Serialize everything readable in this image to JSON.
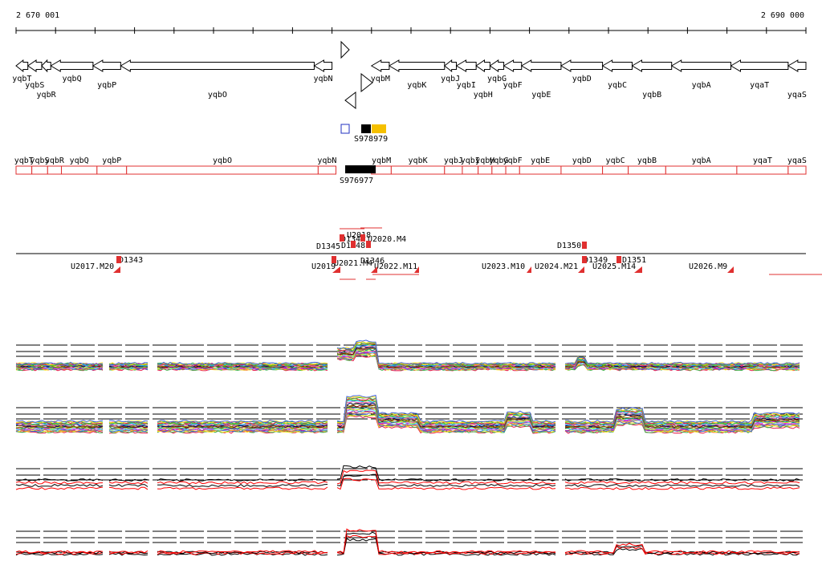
{
  "coordinates": {
    "start": "2 670 001",
    "end": "2 690 000"
  },
  "genes_forward": [
    {
      "name": "yqbT",
      "start": 2670001,
      "end": 2670300,
      "strand": "-",
      "row": 0
    },
    {
      "name": "yqbS",
      "start": 2670300,
      "end": 2670650,
      "strand": "-",
      "row": 1
    },
    {
      "name": "yqbR",
      "start": 2670650,
      "end": 2670880,
      "strand": "-",
      "row": 2
    },
    {
      "name": "yqbQ",
      "start": 2670880,
      "end": 2671950,
      "strand": "-",
      "row": 0
    },
    {
      "name": "yqbP",
      "start": 2671950,
      "end": 2672650,
      "strand": "-",
      "row": 1
    },
    {
      "name": "yqbO",
      "start": 2672650,
      "end": 2677550,
      "strand": "-",
      "row": 2
    },
    {
      "name": "yqbN",
      "start": 2677550,
      "end": 2678000,
      "strand": "-",
      "row": 0
    },
    {
      "name": "yqbM",
      "start": 2679000,
      "end": 2679450,
      "strand": "-",
      "row": 0
    },
    {
      "name": "yqbK",
      "start": 2679450,
      "end": 2680850,
      "strand": "-",
      "row": 1
    },
    {
      "name": "yqbJ",
      "start": 2680850,
      "end": 2681150,
      "strand": "-",
      "row": 0
    },
    {
      "name": "yqbI",
      "start": 2681150,
      "end": 2681650,
      "strand": "-",
      "row": 1
    },
    {
      "name": "yqbH",
      "start": 2681650,
      "end": 2682000,
      "strand": "-",
      "row": 2
    },
    {
      "name": "yqbG",
      "start": 2682000,
      "end": 2682350,
      "strand": "-",
      "row": 0
    },
    {
      "name": "yqbF",
      "start": 2682350,
      "end": 2682800,
      "strand": "-",
      "row": 1
    },
    {
      "name": "yqbE",
      "start": 2682800,
      "end": 2683800,
      "strand": "-",
      "row": 2
    },
    {
      "name": "yqbD",
      "start": 2683800,
      "end": 2684850,
      "strand": "-",
      "row": 0
    },
    {
      "name": "yqbC",
      "start": 2684850,
      "end": 2685600,
      "strand": "-",
      "row": 1
    },
    {
      "name": "yqbB",
      "start": 2685600,
      "end": 2686600,
      "strand": "-",
      "row": 2
    },
    {
      "name": "yqbA",
      "start": 2686600,
      "end": 2688100,
      "strand": "-",
      "row": 1
    },
    {
      "name": "yqaT",
      "start": 2688100,
      "end": 2689550,
      "strand": "-",
      "row": 1
    },
    {
      "name": "yqaS",
      "start": 2689550,
      "end": 2690000,
      "strand": "-",
      "row": 2
    }
  ],
  "segments_upper": [
    {
      "name": "S978979",
      "start": 2678300,
      "end": 2679250
    }
  ],
  "segments_lower": [
    {
      "name": "S976977",
      "start": 2678250,
      "end": 2679000
    }
  ],
  "genes_lower": [
    {
      "name": "yqbT",
      "start": 2670001,
      "end": 2670400
    },
    {
      "name": "yqbS",
      "start": 2670400,
      "end": 2670800
    },
    {
      "name": "yqbR",
      "start": 2670800,
      "end": 2671150
    },
    {
      "name": "yqbQ",
      "start": 2671150,
      "end": 2672050
    },
    {
      "name": "yqbP",
      "start": 2672050,
      "end": 2672800
    },
    {
      "name": "yqbO",
      "start": 2672800,
      "end": 2677650
    },
    {
      "name": "yqbN",
      "start": 2677650,
      "end": 2678100
    },
    {
      "name": "yqbM",
      "start": 2679000,
      "end": 2679500
    },
    {
      "name": "yqbK",
      "start": 2679500,
      "end": 2680850
    },
    {
      "name": "yqbJ",
      "start": 2680850,
      "end": 2681300
    },
    {
      "name": "yqbI",
      "start": 2681300,
      "end": 2681700
    },
    {
      "name": "yqbH",
      "start": 2681700,
      "end": 2682050
    },
    {
      "name": "yqbG",
      "start": 2682050,
      "end": 2682400
    },
    {
      "name": "yqbF",
      "start": 2682400,
      "end": 2682750
    },
    {
      "name": "yqbE",
      "start": 2682750,
      "end": 2683800
    },
    {
      "name": "yqbD",
      "start": 2683800,
      "end": 2684850
    },
    {
      "name": "yqbC",
      "start": 2684850,
      "end": 2685500
    },
    {
      "name": "yqbB",
      "start": 2685500,
      "end": 2686450
    },
    {
      "name": "yqbA",
      "start": 2686450,
      "end": 2688250
    },
    {
      "name": "yqaT",
      "start": 2688250,
      "end": 2689550
    },
    {
      "name": "yqaS",
      "start": 2689550,
      "end": 2690000
    }
  ],
  "transcription_labels": [
    {
      "name": "U2017.M20"
    },
    {
      "name": "D1343"
    },
    {
      "name": "D1345"
    },
    {
      "name": "U2019"
    },
    {
      "name": "D1344"
    },
    {
      "name": "U2018"
    },
    {
      "name": "D1348"
    },
    {
      "name": "U2020.M4"
    },
    {
      "name": "U2021.M4"
    },
    {
      "name": "D1346"
    },
    {
      "name": "U2022.M11"
    },
    {
      "name": "D1350"
    },
    {
      "name": "U2023.M10"
    },
    {
      "name": "U2024.M21"
    },
    {
      "name": "D1349"
    },
    {
      "name": "U2025.M14"
    },
    {
      "name": "D1351"
    },
    {
      "name": "U2026.M9"
    }
  ],
  "colors": {
    "gene_stroke": "#000000",
    "lower_track": "#e03030",
    "segment_black": "#000000",
    "segment_yellow": "#f5c000",
    "segment_blue_outline": "#2030c0",
    "expression_red": "#ff0000",
    "expression_black": "#000000",
    "expression_palette": [
      "#e6194b",
      "#3cb44b",
      "#ffe119",
      "#4363d8",
      "#f58231",
      "#911eb4",
      "#46f0f0",
      "#f032e6",
      "#bcf60c",
      "#008080",
      "#9a6324",
      "#800000",
      "#808000",
      "#000075",
      "#808080",
      "#ff69b4",
      "#00aaff",
      "#66cc00"
    ]
  }
}
